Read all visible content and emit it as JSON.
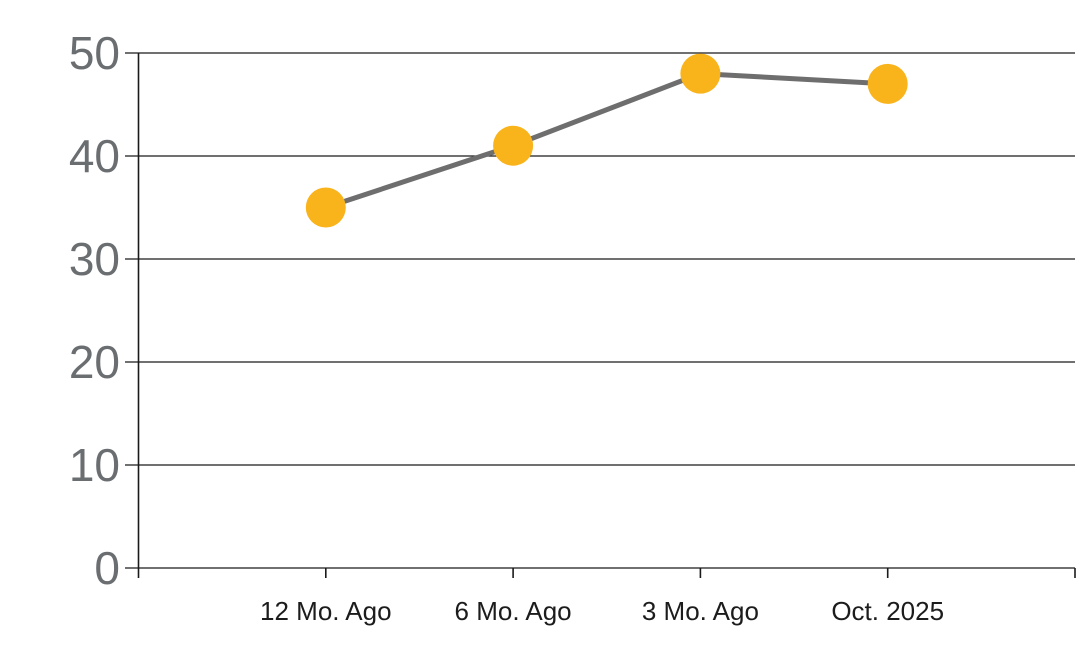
{
  "chart_data": {
    "type": "line",
    "title": "",
    "xlabel": "",
    "ylabel": "",
    "categories": [
      "12 Mo. Ago",
      "6 Mo. Ago",
      "3 Mo. Ago",
      "Oct. 2025"
    ],
    "series": [
      {
        "name": "value",
        "values": [
          35,
          41,
          48,
          47
        ]
      }
    ],
    "ylim": [
      0,
      50
    ],
    "ytick_step": 10,
    "ytick_labels": [
      "0",
      "10",
      "20",
      "30",
      "40",
      "50"
    ],
    "grid": true,
    "legend_position": "none",
    "colors": {
      "background": "#FFFFFF",
      "marker": "#F9B31B",
      "line": "#6E6E6E",
      "gridline": "#1A1A1A",
      "axis": "#1A1A1A",
      "y_tick_label": "#6B6E71",
      "x_tick_label": "#1C1C1C"
    },
    "style": {
      "line_width": 5,
      "marker_radius": 20,
      "y_label_font_size": 46,
      "x_label_font_size": 26
    }
  }
}
